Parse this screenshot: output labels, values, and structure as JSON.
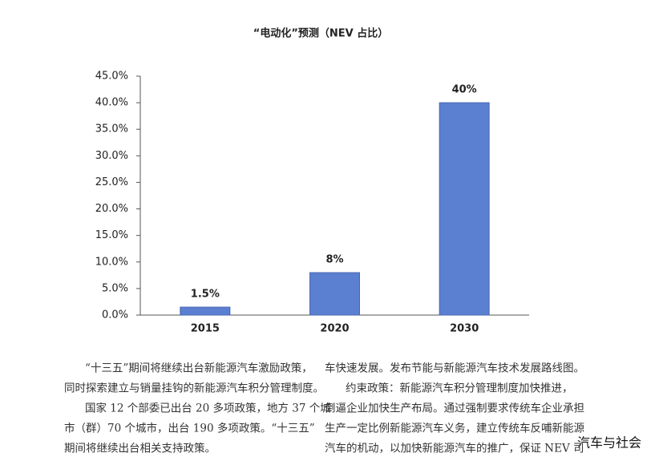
{
  "chart_data": {
    "type": "bar",
    "title": "“电动化”预测（NEV 占比）",
    "categories": [
      "2015",
      "2020",
      "2030"
    ],
    "values": [
      1.5,
      8,
      40
    ],
    "value_labels": [
      "1.5%",
      "8%",
      "40%"
    ],
    "color": "#5b7fd1",
    "ylim": [
      0,
      45
    ],
    "yticks": [
      {
        "value": 0,
        "label": "0.0%"
      },
      {
        "value": 5,
        "label": "5.0%"
      },
      {
        "value": 10,
        "label": "10.0%"
      },
      {
        "value": 15,
        "label": "15.0%"
      },
      {
        "value": 20,
        "label": "20.0%"
      },
      {
        "value": 25,
        "label": "25.0%"
      },
      {
        "value": 30,
        "label": "30.0%"
      },
      {
        "value": 35,
        "label": "35.0%"
      },
      {
        "value": 40,
        "label": "40.0%"
      },
      {
        "value": 45,
        "label": "45.0%"
      }
    ],
    "grid": false
  },
  "text": {
    "left": [
      "“十三五”期间将继续出台新能源汽车激励政策，",
      "同时探索建立与销量挂钩的新能源汽车积分管理制度。",
      "国家 12 个部委已出台 20 多项政策，地方 37 个城",
      "市（群）70 个城市，出台 190 多项政策。“十三五”",
      "期间将继续出台相关支持政策。"
    ],
    "right": [
      "车快速发展。发布节能与新能源汽车技术发展路线图。",
      "约束政策：新能源汽车积分管理制度加快推进，",
      "倒逼企业加快生产布局。通过强制要求传统车企业承担",
      "生产一定比例新能源汽车义务，建立传统车反哺新能源",
      "汽车的机动，以加快新能源汽车的推广，保证 NEV 司"
    ],
    "watermark": "汽车与社会"
  }
}
